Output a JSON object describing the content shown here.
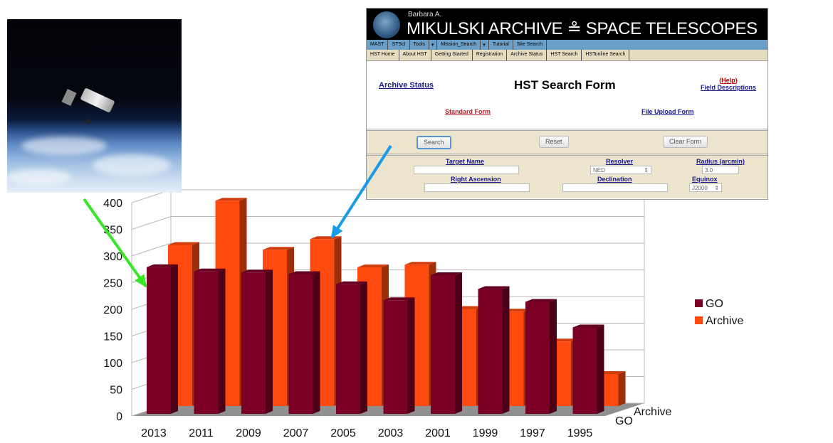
{
  "chart_data": {
    "type": "bar",
    "categories": [
      "2013",
      "2011",
      "2009",
      "2007",
      "2005",
      "2003",
      "2001",
      "1999",
      "1997",
      "1995"
    ],
    "series": [
      {
        "name": "GO",
        "values": [
          275,
          267,
          265,
          262,
          243,
          213,
          260,
          234,
          210,
          162
        ]
      },
      {
        "name": "Archive",
        "values": [
          302,
          385,
          293,
          313,
          260,
          265,
          182,
          177,
          121,
          60
        ]
      }
    ],
    "ylim": [
      0,
      400
    ],
    "yticks": [
      0,
      50,
      100,
      150,
      200,
      250,
      300,
      350,
      400
    ],
    "depth_labels": [
      "GO",
      "Archive"
    ],
    "legend_position": "right",
    "grid": true,
    "colors": {
      "GO": "#7a0026",
      "Archive": "#ff4a0f",
      "wall_grid": "#b8b8b8",
      "floor": "#909090"
    }
  },
  "annotations": {
    "green_arrow_color": "#39e626",
    "blue_arrow_color": "#1a9be8"
  },
  "photo": {
    "subject": "hubble-space-telescope-photo"
  },
  "mast": {
    "header_pre": "Barbara A.",
    "header_title": "MIKULSKI ARCHIVE ≗ SPACE TELESCOPES",
    "nav_primary": [
      "MAST",
      "STScI",
      "Tools",
      "Mission_Search",
      "Tutorial",
      "Site Search"
    ],
    "nav_secondary": [
      "HST Home",
      "About HST",
      "Getting Started",
      "Registration",
      "Archive Status",
      "HST Search",
      "HSTonline Search"
    ],
    "archive_status_link": "Archive Status",
    "form_title": "HST Search Form",
    "help_link": "Help",
    "field_descriptions_link": "Field Descriptions",
    "standard_form_link": "Standard Form",
    "file_upload_form_link": "File Upload Form",
    "search_button": "Search",
    "reset_button": "Reset",
    "clear_button": "Clear Form",
    "target_name_label": "Target Name",
    "resolver_label": "Resolver",
    "resolver_value": "NED",
    "radius_label": "Radius (arcmin)",
    "radius_value": "3.0",
    "ra_label": "Right Ascension",
    "dec_label": "Declination",
    "equinox_label": "Equinox",
    "equinox_value": "J2000"
  }
}
